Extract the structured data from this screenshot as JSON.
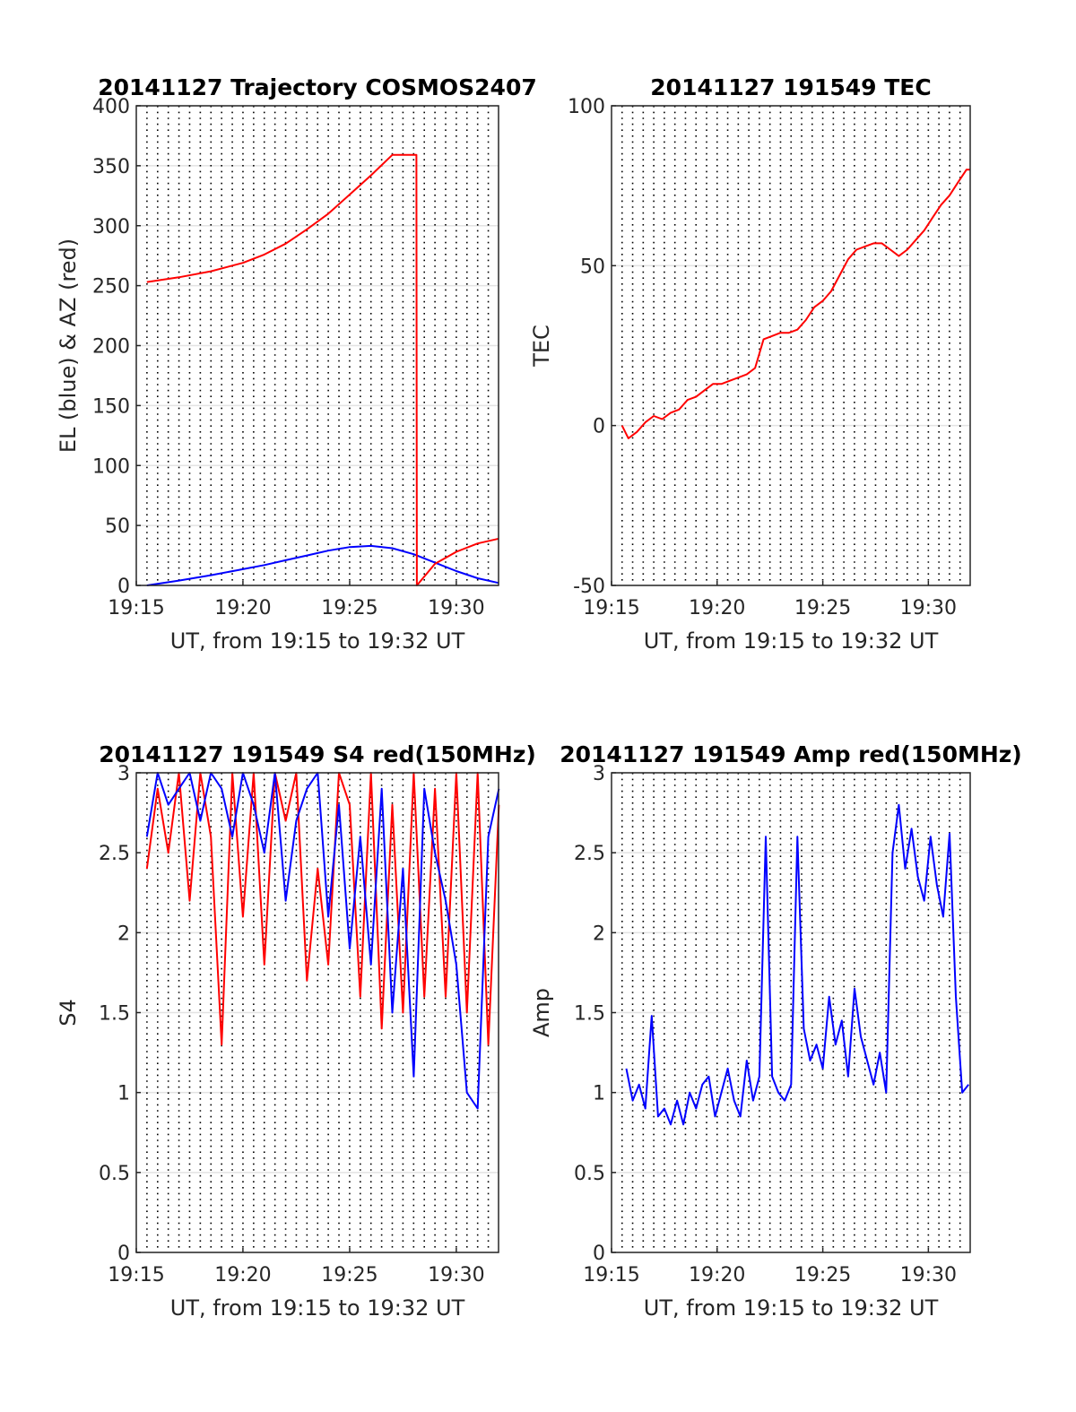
{
  "chart_data": [
    {
      "type": "line",
      "title": "20141127 Trajectory COSMOS2407",
      "xlabel": "UT, from 19:15 to 19:32 UT",
      "ylabel": "EL (blue) & AZ (red)",
      "xlim": [
        19.25,
        19.533
      ],
      "x_tick_labels": [
        "19:15",
        "19:20",
        "19:25",
        "19:30"
      ],
      "ylim": [
        0,
        400
      ],
      "y_ticks": [
        0,
        50,
        100,
        150,
        200,
        250,
        300,
        350,
        400
      ],
      "grid": true,
      "series": [
        {
          "color": "#0000ff",
          "x": [
            19.2583,
            19.2833,
            19.3083,
            19.3333,
            19.35,
            19.3667,
            19.3833,
            19.3917,
            19.4,
            19.4167,
            19.4333,
            19.45,
            19.4667,
            19.4833,
            19.5,
            19.5167,
            19.5333
          ],
          "y": [
            0,
            4,
            8.5,
            13.5,
            17,
            21,
            25,
            27,
            29,
            32,
            33,
            31,
            26,
            19,
            12,
            6,
            2
          ]
        },
        {
          "color": "#ff0000",
          "x": [
            19.2583,
            19.2833,
            19.3083,
            19.3333,
            19.35,
            19.3667,
            19.3833,
            19.4,
            19.4167,
            19.4333,
            19.45,
            19.4667,
            19.4688,
            19.4692,
            19.4833,
            19.5,
            19.5167,
            19.5333
          ],
          "y": [
            253,
            257,
            262,
            269,
            276,
            285,
            297,
            310,
            326,
            342,
            359,
            359,
            359,
            0,
            18,
            28,
            35,
            39
          ]
        }
      ]
    },
    {
      "type": "line",
      "title": "20141127 191549 TEC",
      "xlabel": "UT, from 19:15 to 19:32 UT",
      "ylabel": "TEC",
      "xlim": [
        19.25,
        19.533
      ],
      "x_tick_labels": [
        "19:15",
        "19:20",
        "19:25",
        "19:30"
      ],
      "ylim": [
        -50,
        100
      ],
      "y_ticks": [
        -50,
        0,
        50,
        100
      ],
      "grid": true,
      "series": [
        {
          "color": "#ff0000",
          "x": [
            19.2583,
            19.2633,
            19.27,
            19.2767,
            19.2833,
            19.29,
            19.2967,
            19.3033,
            19.31,
            19.3167,
            19.3233,
            19.33,
            19.3367,
            19.3433,
            19.35,
            19.3567,
            19.3633,
            19.37,
            19.3767,
            19.3833,
            19.39,
            19.3967,
            19.4033,
            19.41,
            19.4167,
            19.4233,
            19.43,
            19.4367,
            19.4433,
            19.45,
            19.4567,
            19.4633,
            19.47,
            19.4767,
            19.4833,
            19.49,
            19.4967,
            19.5033,
            19.51,
            19.5167,
            19.5233,
            19.53,
            19.5333
          ],
          "y": [
            0,
            -4,
            -2,
            1,
            3,
            2,
            4,
            5,
            8,
            9,
            11,
            13,
            13,
            14,
            15,
            16,
            18,
            27,
            28,
            29,
            29,
            30,
            33,
            37,
            39,
            42,
            47,
            52,
            55,
            56,
            57,
            57,
            55,
            53,
            55,
            58,
            61,
            65,
            69,
            72,
            76,
            80,
            80
          ]
        }
      ]
    },
    {
      "type": "line",
      "title": "20141127 191549 S4 red(150MHz)",
      "xlabel": "UT, from 19:15 to 19:32 UT",
      "ylabel": "S4",
      "xlim": [
        19.25,
        19.533
      ],
      "x_tick_labels": [
        "19:15",
        "19:20",
        "19:25",
        "19:30"
      ],
      "ylim": [
        0,
        3
      ],
      "y_ticks": [
        0,
        0.5,
        1,
        1.5,
        2,
        2.5,
        3
      ],
      "grid": true,
      "series": [
        {
          "color": "#ff0000",
          "x": [
            19.2583,
            19.2667,
            19.275,
            19.2833,
            19.2917,
            19.3,
            19.3083,
            19.3167,
            19.325,
            19.3333,
            19.3417,
            19.35,
            19.3583,
            19.3667,
            19.375,
            19.3833,
            19.3917,
            19.4,
            19.4083,
            19.4167,
            19.425,
            19.4333,
            19.4417,
            19.45,
            19.4583,
            19.4667,
            19.475,
            19.4833,
            19.4917,
            19.5,
            19.5083,
            19.5167,
            19.525,
            19.5333
          ],
          "y": [
            2.4,
            2.9,
            2.5,
            3,
            2.2,
            3,
            2.6,
            1.3,
            3,
            2.1,
            3,
            1.8,
            3,
            2.7,
            3,
            1.7,
            2.4,
            1.8,
            3,
            2.8,
            1.6,
            3,
            1.4,
            2.8,
            1.5,
            3,
            1.6,
            2.9,
            1.6,
            3,
            1.5,
            3,
            1.3,
            2.8
          ]
        },
        {
          "color": "#0000ff",
          "x": [
            19.2583,
            19.2667,
            19.275,
            19.2833,
            19.2917,
            19.3,
            19.3083,
            19.3167,
            19.325,
            19.3333,
            19.3417,
            19.35,
            19.3583,
            19.3667,
            19.375,
            19.3833,
            19.3917,
            19.4,
            19.4083,
            19.4167,
            19.425,
            19.4333,
            19.4417,
            19.45,
            19.4583,
            19.4667,
            19.475,
            19.4833,
            19.4917,
            19.5,
            19.5083,
            19.5167,
            19.525,
            19.5333
          ],
          "y": [
            2.6,
            3,
            2.8,
            2.9,
            3,
            2.7,
            3,
            2.9,
            2.6,
            3,
            2.8,
            2.5,
            3,
            2.2,
            2.7,
            2.9,
            3,
            2.1,
            2.8,
            1.9,
            2.6,
            1.8,
            2.9,
            1.5,
            2.4,
            1.1,
            2.9,
            2.5,
            2.2,
            1.8,
            1.0,
            0.9,
            2.6,
            2.9
          ]
        }
      ]
    },
    {
      "type": "line",
      "title": "20141127 191549 Amp red(150MHz)",
      "xlabel": "UT, from 19:15 to 19:32 UT",
      "ylabel": "Amp",
      "xlim": [
        19.25,
        19.533
      ],
      "x_tick_labels": [
        "19:15",
        "19:20",
        "19:25",
        "19:30"
      ],
      "ylim": [
        0,
        3
      ],
      "y_ticks": [
        0,
        0.5,
        1,
        1.5,
        2,
        2.5,
        3
      ],
      "grid": true,
      "series": [
        {
          "color": "#0000ff",
          "x": [
            19.2617,
            19.2667,
            19.2717,
            19.2767,
            19.2817,
            19.2867,
            19.2917,
            19.2967,
            19.3017,
            19.3067,
            19.3117,
            19.3167,
            19.3217,
            19.3267,
            19.3317,
            19.3367,
            19.3417,
            19.3467,
            19.3517,
            19.3567,
            19.3617,
            19.3667,
            19.3717,
            19.3767,
            19.3817,
            19.3867,
            19.3917,
            19.3967,
            19.4017,
            19.4067,
            19.4117,
            19.4167,
            19.4217,
            19.4267,
            19.4317,
            19.4367,
            19.4417,
            19.4467,
            19.4517,
            19.4567,
            19.4617,
            19.4667,
            19.4717,
            19.4767,
            19.4817,
            19.4867,
            19.4917,
            19.4967,
            19.5017,
            19.5067,
            19.5117,
            19.5167,
            19.5217,
            19.5267,
            19.5317
          ],
          "y": [
            1.15,
            0.95,
            1.05,
            0.9,
            1.48,
            0.85,
            0.9,
            0.8,
            0.95,
            0.8,
            1.0,
            0.9,
            1.05,
            1.1,
            0.85,
            1.0,
            1.15,
            0.95,
            0.85,
            1.2,
            0.95,
            1.1,
            2.6,
            1.1,
            1.0,
            0.95,
            1.05,
            2.6,
            1.4,
            1.2,
            1.3,
            1.15,
            1.6,
            1.3,
            1.45,
            1.1,
            1.65,
            1.35,
            1.2,
            1.05,
            1.25,
            1.0,
            2.5,
            2.8,
            2.4,
            2.65,
            2.35,
            2.2,
            2.6,
            2.3,
            2.1,
            2.62,
            1.6,
            1.0,
            1.05
          ]
        }
      ]
    }
  ]
}
